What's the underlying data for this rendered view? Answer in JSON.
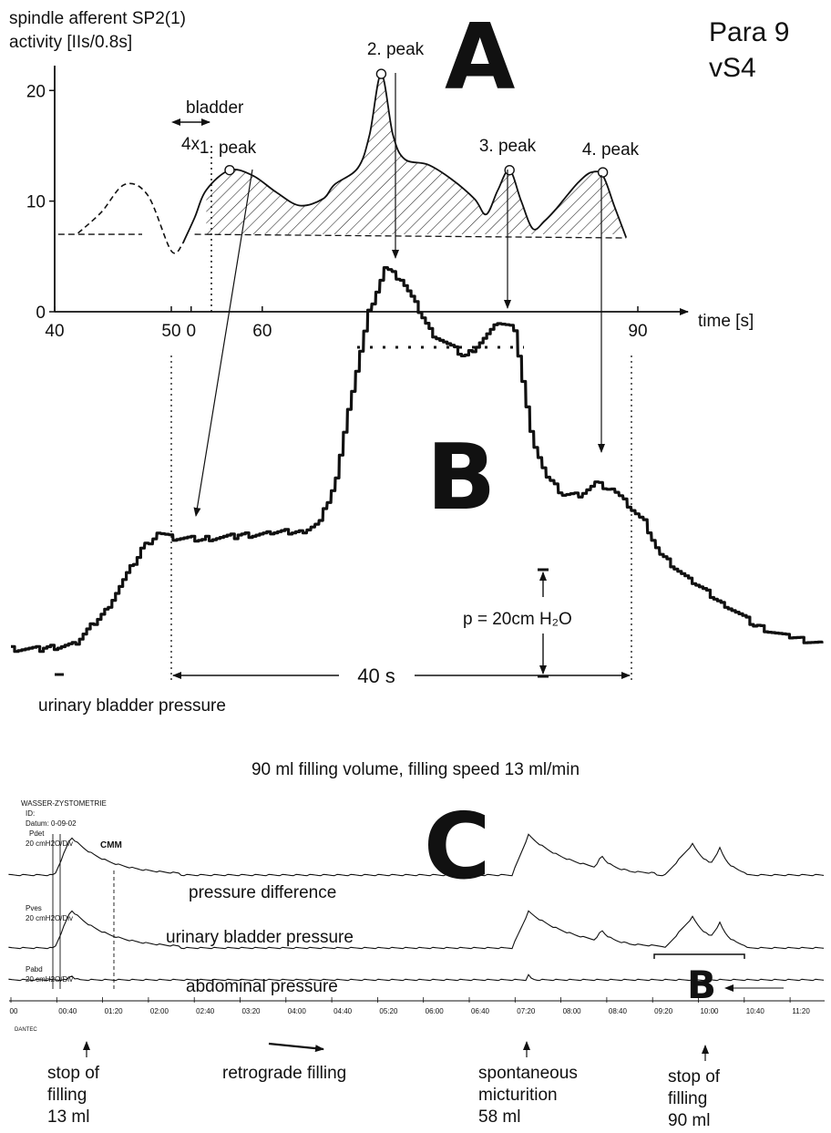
{
  "panel_a": {
    "letter": "A",
    "ylabel": [
      "spindle afferent SP2(1)",
      "activity [IIs/0.8s]"
    ],
    "xlabel": "time [s]",
    "yticks": [
      "0",
      "10",
      "20"
    ],
    "xticks": [
      "40",
      "50",
      "0",
      "60",
      "90"
    ],
    "bladder_label": "bladder",
    "bladder_sub": "4x",
    "peaks": [
      "1. peak",
      "2. peak",
      "3. peak",
      "4. peak"
    ],
    "subject": [
      "Para 9",
      "vS4"
    ]
  },
  "panel_b": {
    "letter": "B",
    "scale_label": "p = 20cm H₂O",
    "time_bar": "40 s",
    "trace_label": "urinary bladder pressure"
  },
  "caption": "90 ml filling volume, filling speed 13 ml/min",
  "panel_c": {
    "letter": "C",
    "bracket_letter": "B",
    "header": [
      "WASSER-ZYSTOMETRIE",
      "ID:",
      "Datum: 0-09-02",
      "Pdet",
      "20 cmH2O/Div",
      "Pves",
      "20 cmH2O/Div",
      "Pabd",
      "20 cmH2O/Div"
    ],
    "cmm": "CMM",
    "trace_labels": [
      "pressure difference",
      "urinary bladder pressure",
      "abdominal pressure"
    ],
    "time_ticks": [
      "00",
      "00:40",
      "01:20",
      "02:00",
      "02:40",
      "03:20",
      "04:00",
      "04:40",
      "05:20",
      "06:00",
      "06:40",
      "07:20",
      "08:00",
      "08:40",
      "09:20",
      "10:00",
      "10:40",
      "11:20"
    ],
    "dantec": "DANTEC"
  },
  "annotations": [
    {
      "lines": [
        "stop of",
        "filling",
        "13 ml"
      ]
    },
    {
      "lines": [
        "retrograde filling"
      ]
    },
    {
      "lines": [
        "spontaneous",
        "micturition",
        "58 ml"
      ]
    },
    {
      "lines": [
        "stop of",
        "filling",
        "90 ml"
      ]
    }
  ],
  "chart_data": [
    {
      "type": "area",
      "panel": "A",
      "ylabel": "spindle afferent SP2(1) activity [IIs/0.8s]",
      "xlabel": "time [s]",
      "xlim": [
        40,
        90
      ],
      "ylim": [
        0,
        22
      ],
      "baseline": 7,
      "series": [
        {
          "name": "spindle afferent SP2(1) activity",
          "x": [
            42,
            44,
            46,
            48,
            50,
            51,
            52,
            53,
            55,
            57,
            59,
            61,
            63,
            64,
            66,
            67,
            68,
            69,
            70,
            72,
            74,
            76,
            77,
            78,
            79,
            80,
            81,
            82,
            83,
            84,
            85,
            86,
            87,
            88,
            89
          ],
          "y": [
            7.1,
            9,
            11.5,
            10.5,
            5.5,
            6.2,
            8.5,
            11,
            12.8,
            12.3,
            10.8,
            9.6,
            10.2,
            11.5,
            13,
            16,
            21.5,
            16,
            13.8,
            13.3,
            12,
            10.2,
            8.8,
            11,
            12.8,
            10,
            7.5,
            8.2,
            9.3,
            10.6,
            11.8,
            12.6,
            12.3,
            9.5,
            6.7
          ]
        }
      ],
      "annotations": [
        "1. peak",
        "2. peak",
        "3. peak",
        "4. peak"
      ]
    },
    {
      "type": "line",
      "panel": "B",
      "series": [
        {
          "name": "urinary bladder pressure",
          "x": [
            0,
            4,
            8,
            12,
            16,
            18,
            20,
            24,
            28,
            32,
            36,
            38,
            40,
            42,
            44,
            46,
            48,
            52,
            56,
            60,
            62,
            64,
            66,
            68,
            70,
            72,
            74,
            76,
            78,
            80,
            84,
            88,
            92,
            96,
            100
          ],
          "y": [
            1,
            1,
            2,
            9,
            19,
            22,
            21,
            21,
            21.5,
            22,
            22.5,
            24,
            32,
            48,
            62,
            70,
            68,
            58,
            54,
            60,
            59,
            40,
            32,
            29,
            29,
            31,
            30,
            27,
            24,
            18,
            13,
            9,
            5,
            3,
            2
          ]
        }
      ],
      "annotations": [
        "p = 20cm H₂O",
        "40 s"
      ]
    }
  ]
}
